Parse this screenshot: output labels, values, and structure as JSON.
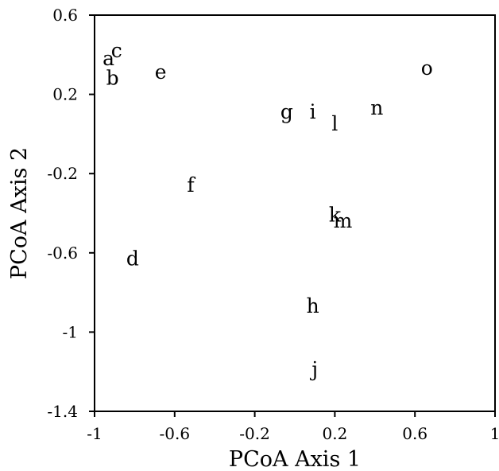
{
  "chart_data": {
    "type": "scatter",
    "title": "",
    "xlabel": "PCoA Axis 1",
    "ylabel": "PCoA Axis 2",
    "xlim": [
      -1,
      1
    ],
    "ylim": [
      -1.4,
      0.6
    ],
    "xticks": [
      -1,
      -0.6,
      -0.2,
      0.2,
      0.6,
      1
    ],
    "yticks": [
      -1.4,
      -1,
      -0.6,
      -0.2,
      0.2,
      0.6
    ],
    "xtick_labels": [
      "-1",
      "-0.6",
      "-0.2",
      "0.2",
      "0.6",
      "1"
    ],
    "ytick_labels": [
      "-1.4",
      "-1",
      "-0.6",
      "-0.2",
      "0.2",
      "0.6"
    ],
    "grid": false,
    "points": [
      {
        "label": "a",
        "x": -0.93,
        "y": 0.38
      },
      {
        "label": "c",
        "x": -0.89,
        "y": 0.42
      },
      {
        "label": "b",
        "x": -0.91,
        "y": 0.28
      },
      {
        "label": "e",
        "x": -0.67,
        "y": 0.31
      },
      {
        "label": "g",
        "x": -0.04,
        "y": 0.11
      },
      {
        "label": "i",
        "x": 0.09,
        "y": 0.11
      },
      {
        "label": "n",
        "x": 0.41,
        "y": 0.13
      },
      {
        "label": "l",
        "x": 0.2,
        "y": 0.05
      },
      {
        "label": "o",
        "x": 0.66,
        "y": 0.33
      },
      {
        "label": "f",
        "x": -0.52,
        "y": -0.26
      },
      {
        "label": "k",
        "x": 0.2,
        "y": -0.41
      },
      {
        "label": "m",
        "x": 0.24,
        "y": -0.44
      },
      {
        "label": "d",
        "x": -0.81,
        "y": -0.63
      },
      {
        "label": "h",
        "x": 0.09,
        "y": -0.87
      },
      {
        "label": "j",
        "x": 0.1,
        "y": -1.19
      }
    ]
  }
}
